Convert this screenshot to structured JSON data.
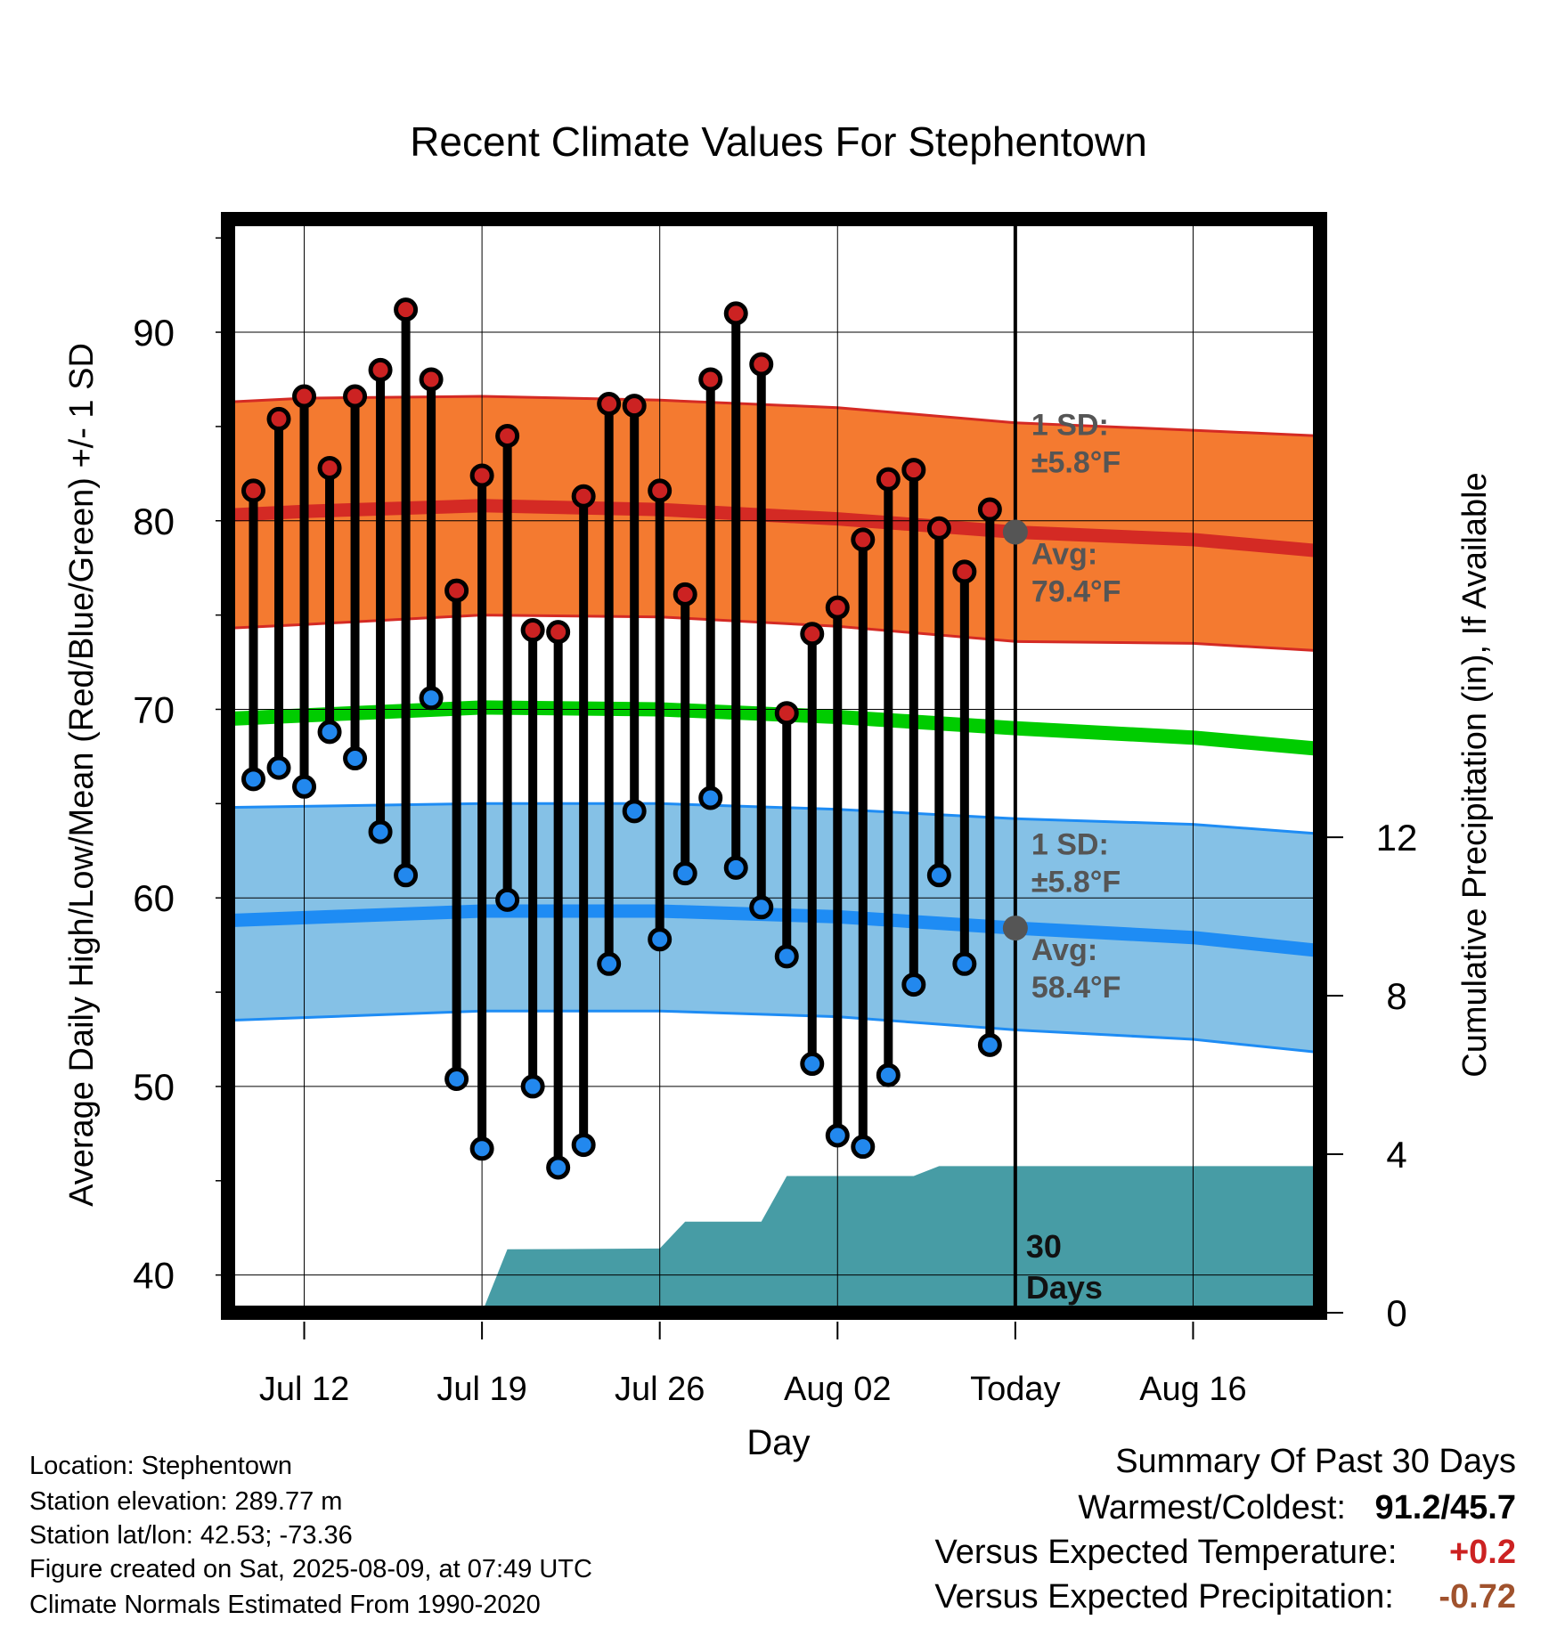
{
  "chart_data": {
    "type": "line",
    "title": "Recent Climate Values For Stephentown",
    "xlabel": "Day",
    "ylabel": "Average Daily High/Low/Mean (Red/Blue/Green) +/- 1 SD",
    "y2label": "Cumulative Precipitation (in), If Available",
    "ylim": [
      38,
      96
    ],
    "y2lim": [
      0,
      27.6
    ],
    "yticks": [
      40,
      50,
      60,
      70,
      80,
      90
    ],
    "y2ticks": [
      0,
      4,
      8,
      12
    ],
    "xlim": [
      "2025-07-09",
      "2025-08-21"
    ],
    "xticks": [
      {
        "date": "2025-07-12",
        "label": "Jul 12"
      },
      {
        "date": "2025-07-19",
        "label": "Jul 19"
      },
      {
        "date": "2025-07-26",
        "label": "Jul 26"
      },
      {
        "date": "2025-08-02",
        "label": "Aug 02"
      },
      {
        "date": "2025-08-09",
        "label": "Today"
      },
      {
        "date": "2025-08-16",
        "label": "Aug 16"
      }
    ],
    "grid": true,
    "today": "2025-08-09",
    "days": [
      "2025-07-10",
      "2025-07-11",
      "2025-07-12",
      "2025-07-13",
      "2025-07-14",
      "2025-07-15",
      "2025-07-16",
      "2025-07-17",
      "2025-07-18",
      "2025-07-19",
      "2025-07-20",
      "2025-07-21",
      "2025-07-22",
      "2025-07-23",
      "2025-07-24",
      "2025-07-25",
      "2025-07-26",
      "2025-07-27",
      "2025-07-28",
      "2025-07-29",
      "2025-07-30",
      "2025-07-31",
      "2025-08-01",
      "2025-08-02",
      "2025-08-03",
      "2025-08-04",
      "2025-08-05",
      "2025-08-06",
      "2025-08-07",
      "2025-08-08"
    ],
    "daily_high": [
      81.6,
      85.4,
      86.6,
      82.8,
      86.6,
      88.0,
      91.2,
      87.5,
      76.3,
      82.4,
      84.5,
      74.2,
      74.1,
      81.3,
      86.2,
      86.1,
      81.6,
      76.1,
      87.5,
      91.0,
      88.3,
      69.8,
      74.0,
      75.4,
      79.0,
      82.2,
      82.7,
      79.6,
      77.3,
      80.6
    ],
    "daily_low": [
      66.3,
      66.9,
      65.9,
      68.8,
      67.4,
      63.5,
      61.2,
      70.6,
      50.4,
      46.7,
      59.9,
      50.0,
      45.7,
      46.9,
      56.5,
      64.6,
      57.8,
      61.3,
      65.3,
      61.6,
      59.5,
      56.9,
      51.2,
      47.4,
      46.8,
      50.6,
      55.4,
      61.2,
      56.5,
      52.2
    ],
    "normal_high": [
      {
        "date": "2025-07-09",
        "avg": 80.3,
        "upper": 86.3,
        "lower": 74.3
      },
      {
        "date": "2025-07-12",
        "avg": 80.5,
        "upper": 86.5,
        "lower": 74.5
      },
      {
        "date": "2025-07-19",
        "avg": 80.8,
        "upper": 86.6,
        "lower": 75.0
      },
      {
        "date": "2025-07-26",
        "avg": 80.6,
        "upper": 86.4,
        "lower": 74.9
      },
      {
        "date": "2025-08-02",
        "avg": 80.1,
        "upper": 86.0,
        "lower": 74.4
      },
      {
        "date": "2025-08-09",
        "avg": 79.4,
        "upper": 85.2,
        "lower": 73.6
      },
      {
        "date": "2025-08-16",
        "avg": 79.0,
        "upper": 84.8,
        "lower": 73.5
      },
      {
        "date": "2025-08-21",
        "avg": 78.4,
        "upper": 84.5,
        "lower": 73.1
      }
    ],
    "normal_mean": [
      {
        "date": "2025-07-09",
        "avg": 69.5
      },
      {
        "date": "2025-07-19",
        "avg": 70.1
      },
      {
        "date": "2025-07-26",
        "avg": 70.0
      },
      {
        "date": "2025-08-02",
        "avg": 69.6
      },
      {
        "date": "2025-08-09",
        "avg": 69.0
      },
      {
        "date": "2025-08-16",
        "avg": 68.5
      },
      {
        "date": "2025-08-21",
        "avg": 67.9
      }
    ],
    "normal_low": [
      {
        "date": "2025-07-09",
        "avg": 58.8,
        "upper": 64.8,
        "lower": 53.5
      },
      {
        "date": "2025-07-19",
        "avg": 59.3,
        "upper": 65.0,
        "lower": 54.0
      },
      {
        "date": "2025-07-26",
        "avg": 59.3,
        "upper": 65.0,
        "lower": 54.0
      },
      {
        "date": "2025-08-02",
        "avg": 59.0,
        "upper": 64.7,
        "lower": 53.7
      },
      {
        "date": "2025-08-09",
        "avg": 58.4,
        "upper": 64.2,
        "lower": 53.0
      },
      {
        "date": "2025-08-16",
        "avg": 57.9,
        "upper": 63.9,
        "lower": 52.5
      },
      {
        "date": "2025-08-21",
        "avg": 57.2,
        "upper": 63.4,
        "lower": 51.8
      }
    ],
    "cumulative_precip": [
      {
        "date": "2025-07-19",
        "value": 0.0
      },
      {
        "date": "2025-07-20",
        "value": 1.6
      },
      {
        "date": "2025-07-26",
        "value": 1.62
      },
      {
        "date": "2025-07-27",
        "value": 2.3
      },
      {
        "date": "2025-07-30",
        "value": 2.3
      },
      {
        "date": "2025-07-31",
        "value": 3.45
      },
      {
        "date": "2025-08-05",
        "value": 3.45
      },
      {
        "date": "2025-08-06",
        "value": 3.7
      },
      {
        "date": "2025-08-21",
        "value": 3.7
      }
    ],
    "annotations": {
      "high_sd": "1 SD:",
      "high_sd_value": "±5.8°F",
      "high_avg": "Avg:",
      "high_avg_value": "79.4°F",
      "low_sd": "1 SD:",
      "low_sd_value": "±5.8°F",
      "low_avg": "Avg:",
      "low_avg_value": "58.4°F",
      "days_num": "30",
      "days_word": "Days"
    },
    "colors": {
      "high_band": "#f47a30",
      "high_line": "#d42a24",
      "mean_line": "#00cc00",
      "low_band": "#85c1e6",
      "low_line": "#1e8cf4",
      "precip": "#479ca5",
      "marker_high": "#cc2222",
      "marker_low": "#2288ee",
      "annotation": "#555555"
    }
  },
  "info": {
    "location": "Location: Stephentown",
    "elevation": "Station elevation: 289.77 m",
    "latlon": "Station lat/lon: 42.53; -73.36",
    "created": "Figure created on Sat, 2025-08-09, at 07:49 UTC",
    "normals": "Climate Normals Estimated From 1990-2020"
  },
  "summary": {
    "title": "Summary Of Past 30 Days",
    "warm_cold_label": "Warmest/Coldest:",
    "warm_cold_value": "91.2/45.7",
    "temp_label": "Versus Expected Temperature:",
    "temp_value": "+0.2",
    "temp_color": "#cc2222",
    "precip_label": "Versus Expected Precipitation:",
    "precip_value": "-0.72",
    "precip_color": "#a0522d"
  }
}
